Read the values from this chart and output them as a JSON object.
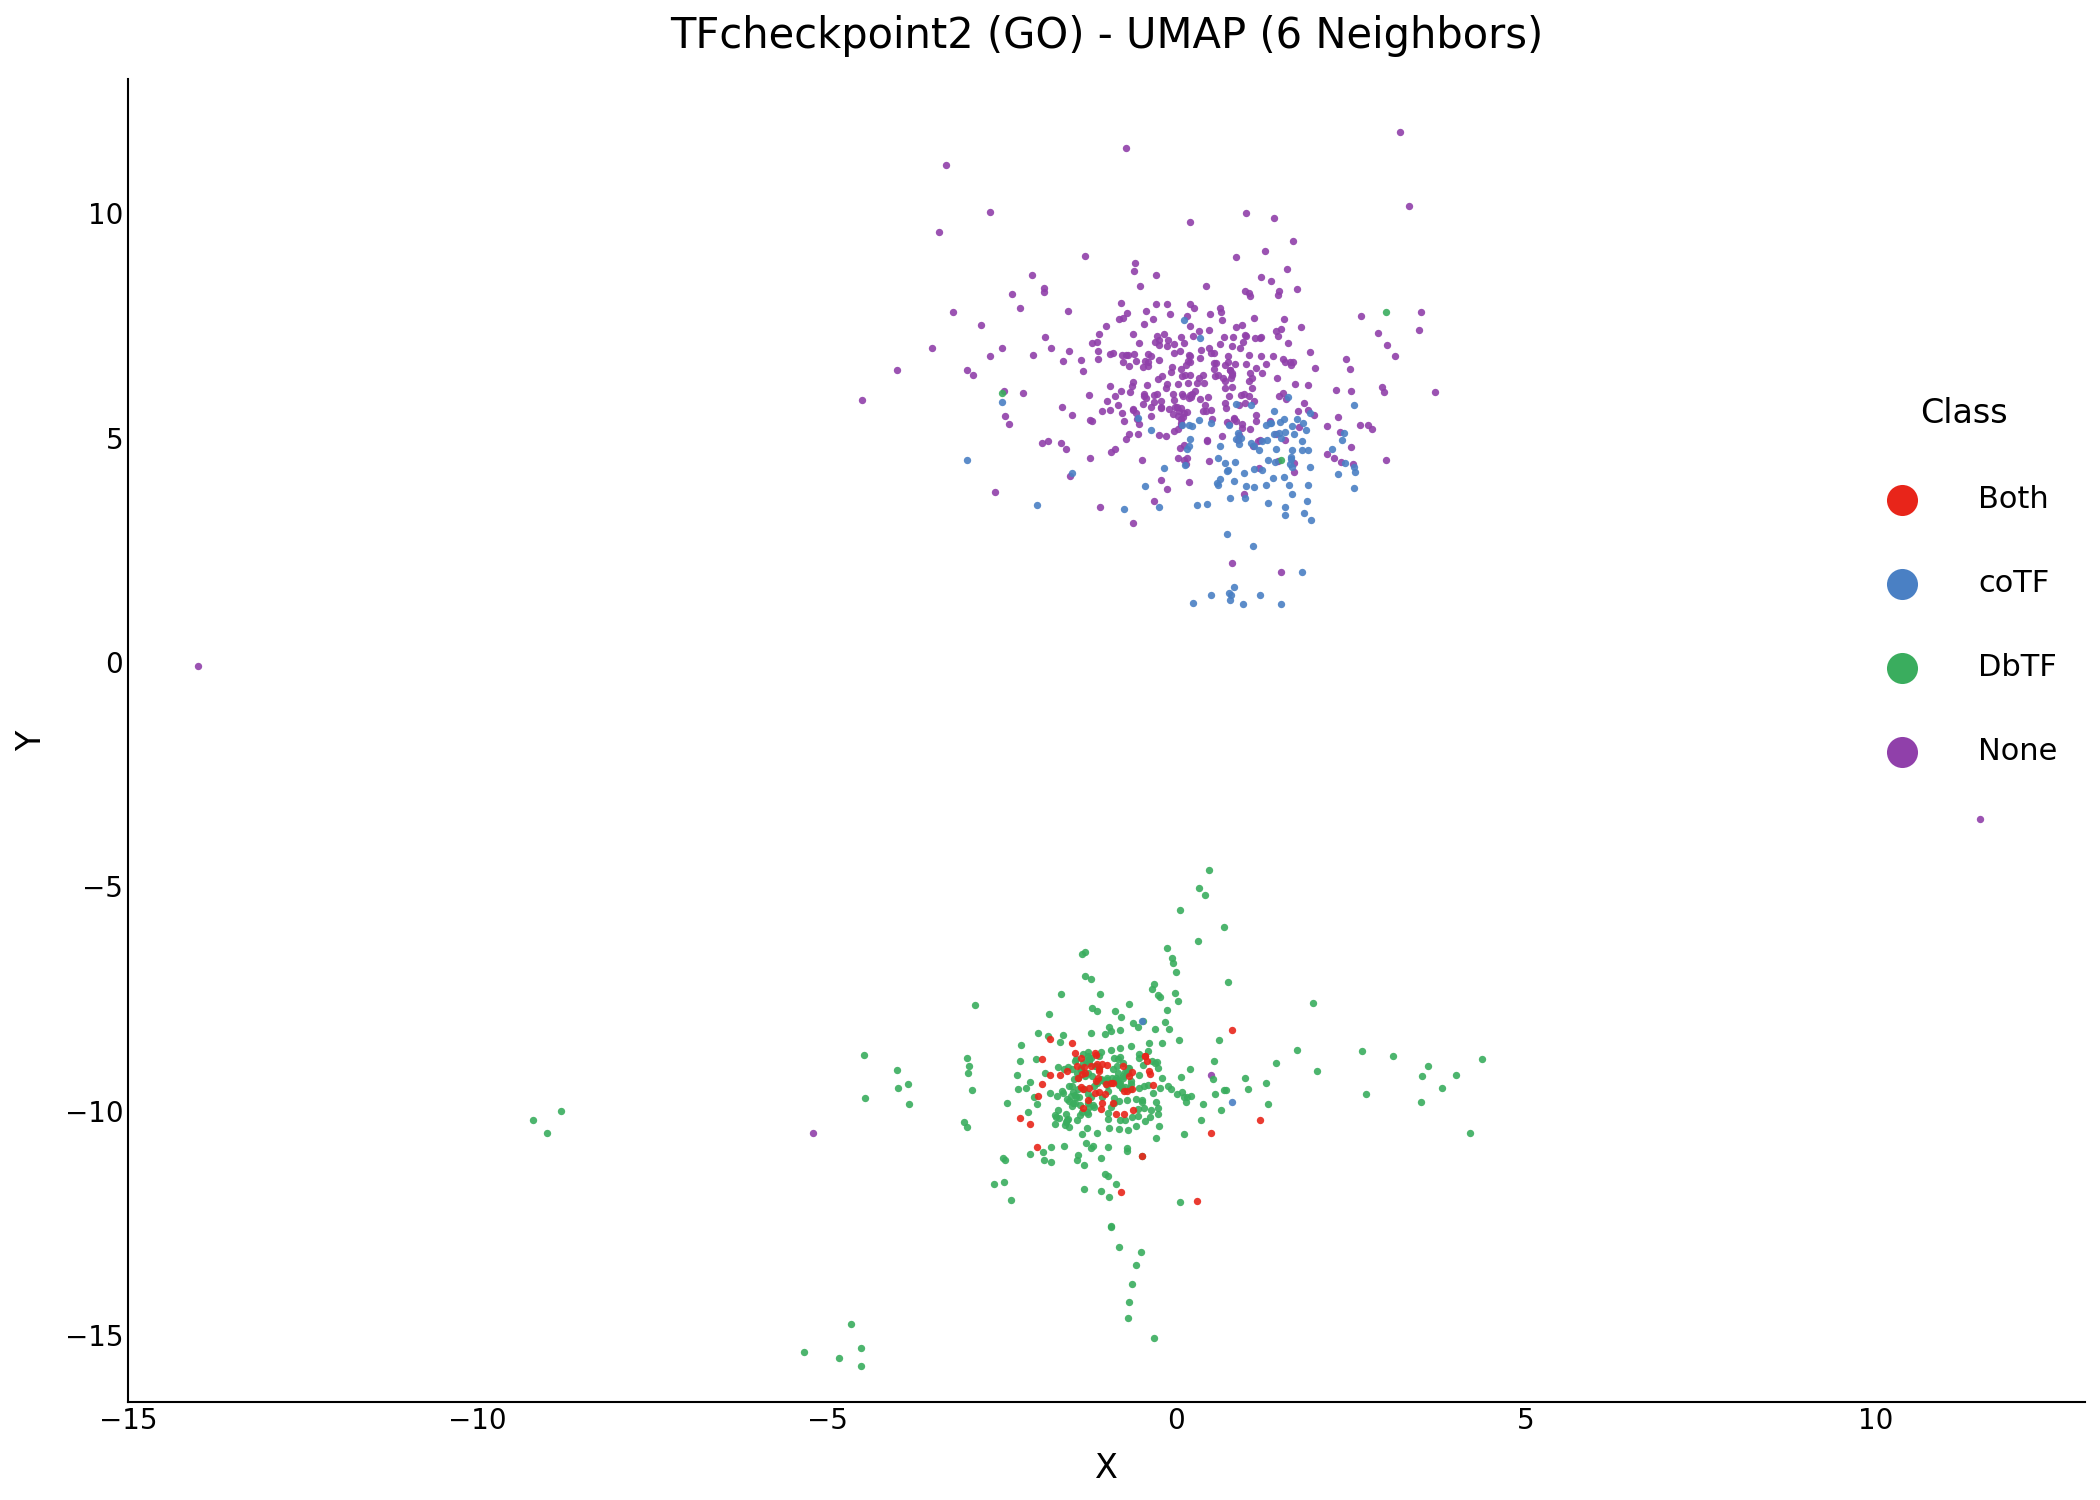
{
  "title": "TFcheckpoint2 (GO) - UMAP (6 Neighbors)",
  "xlabel": "X",
  "ylabel": "Y",
  "xlim": [
    -15,
    13
  ],
  "ylim": [
    -16.5,
    13
  ],
  "xticks": [
    -15,
    -10,
    -5,
    0,
    5,
    10
  ],
  "yticks": [
    -15,
    -10,
    -5,
    0,
    5,
    10
  ],
  "classes": [
    "Both",
    "coTF",
    "DbTF",
    "None"
  ],
  "colors": {
    "Both": "#e8251a",
    "coTF": "#4a80c4",
    "DbTF": "#3aad5e",
    "None": "#9040aa"
  },
  "legend_title": "Class",
  "title_fontsize": 30,
  "label_fontsize": 24,
  "tick_fontsize": 20,
  "legend_fontsize": 22,
  "marker_size": 28,
  "alpha": 0.9,
  "background_color": "#ffffff",
  "seed": 99
}
